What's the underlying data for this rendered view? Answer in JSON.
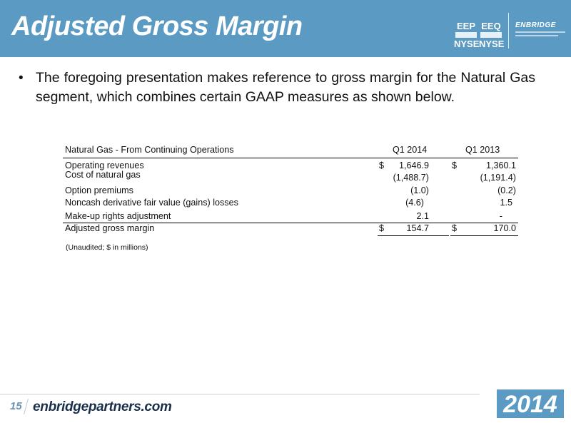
{
  "header": {
    "title": "Adjusted Gross Margin",
    "tickers": [
      {
        "symbol": "EEP",
        "exchange": "NYSE"
      },
      {
        "symbol": "EEQ",
        "exchange": "NYSE"
      }
    ],
    "logo_text": "ENBRIDGE",
    "colors": {
      "band": "#5b9bc3",
      "text": "#ffffff"
    }
  },
  "bullet": {
    "text": "The foregoing presentation makes reference to gross margin for the Natural Gas segment, which combines certain GAAP measures as shown below."
  },
  "table": {
    "caption": "Natural Gas - From Continuing Operations",
    "columns": [
      "Q1 2014",
      "Q1 2013"
    ],
    "rows": [
      {
        "label": "Operating revenues",
        "dollar1": "$",
        "v1": "1,646.9",
        "dollar2": "$",
        "v2": "1,360.1"
      },
      {
        "label": "Cost of natural gas",
        "dollar1": "",
        "v1": "(1,488.7)",
        "dollar2": "",
        "v2": "(1,191.4)"
      },
      {
        "label": "Option premiums",
        "dollar1": "",
        "v1": "(1.0)",
        "dollar2": "",
        "v2": "(0.2)"
      },
      {
        "label": "Noncash derivative fair value (gains) losses",
        "dollar1": "",
        "v1": "(4.6)",
        "dollar2": "",
        "v2": "1.5"
      },
      {
        "label": "Make-up rights adjustment",
        "dollar1": "",
        "v1": "2.1",
        "dollar2": "",
        "v2": "-"
      }
    ],
    "total": {
      "label": "Adjusted gross margin",
      "dollar1": "$",
      "v1": "154.7",
      "dollar2": "$",
      "v2": "170.0"
    },
    "note": "(Unaudited; $ in millions)"
  },
  "footer": {
    "page": "15",
    "site": "enbridgepartners.com",
    "year": "2014",
    "colors": {
      "site": "#1a2e4a",
      "accent": "#5b9bc3"
    }
  }
}
